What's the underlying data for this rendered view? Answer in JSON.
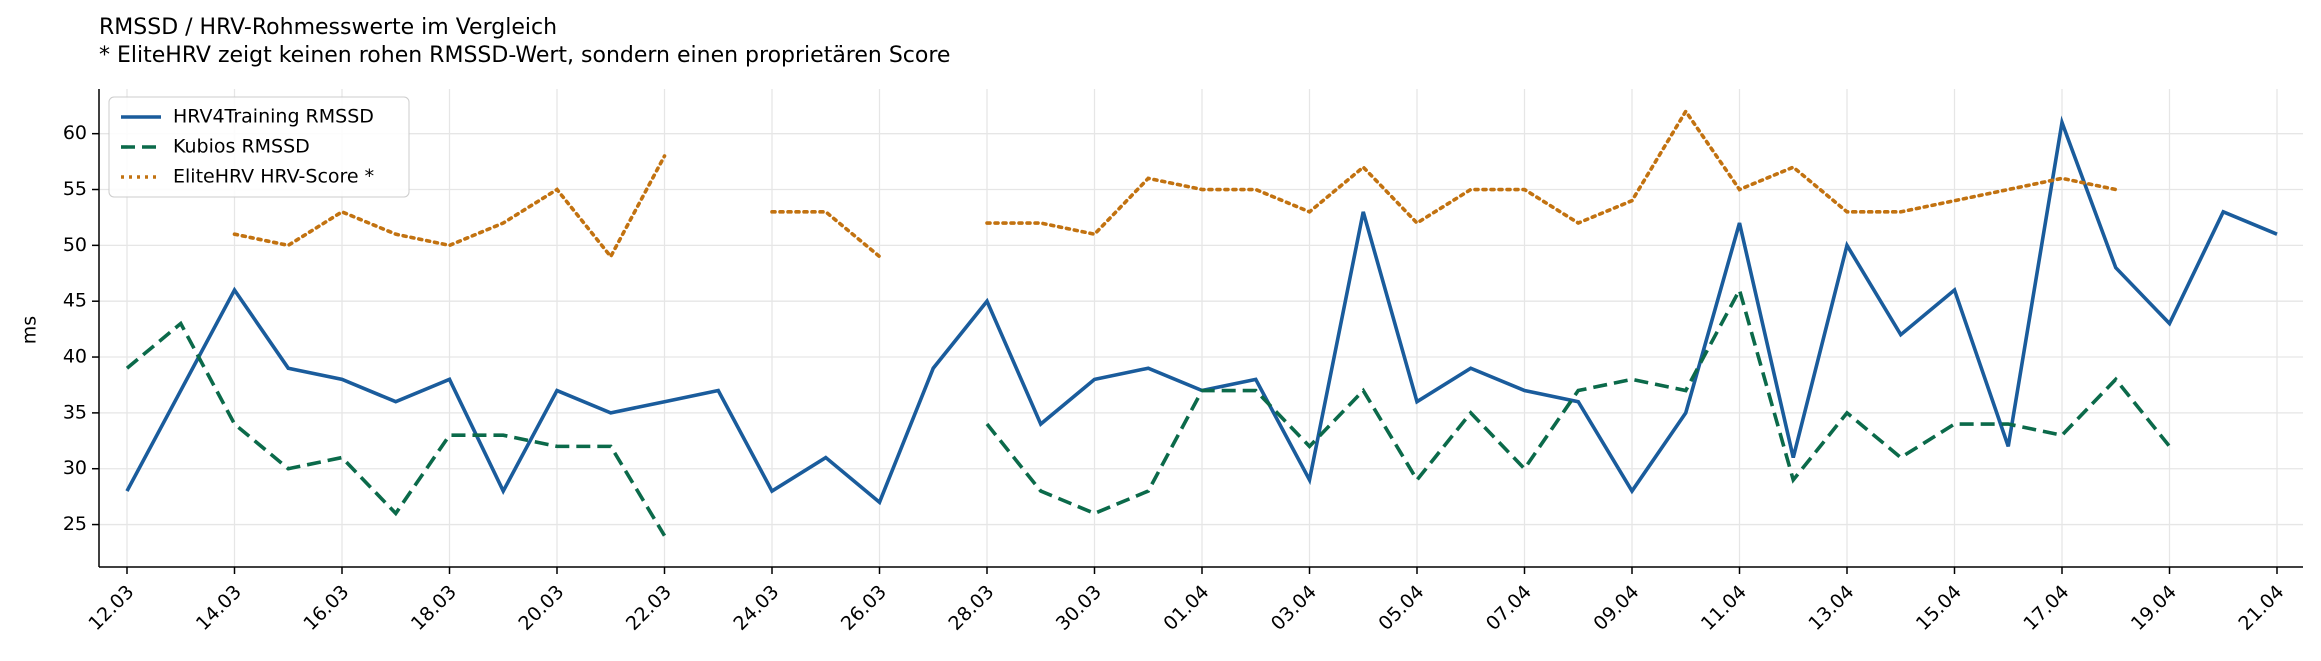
{
  "chart_data": {
    "type": "line",
    "title": "RMSSD / HRV-Rohmesswerte im Vergleich",
    "subtitle": "* EliteHRV zeigt keinen rohen RMSSD-Wert, sondern einen proprietären Score",
    "y_label": "ms",
    "categories": [
      "12.03",
      null,
      "14.03",
      null,
      "16.03",
      null,
      "18.03",
      null,
      "20.03",
      null,
      "22.03",
      null,
      "24.03",
      null,
      "26.03",
      null,
      "28.03",
      null,
      "30.03",
      null,
      "01.04",
      null,
      "03.04",
      null,
      "05.04",
      null,
      "07.04",
      null,
      "09.04",
      null,
      "11.04",
      null,
      "13.04",
      null,
      "15.04",
      null,
      "17.04",
      null,
      "19.04",
      null,
      "21.04"
    ],
    "series": [
      {
        "name": "HRV4Training RMSSD",
        "color": "#1a5c9c",
        "linestyle": "solid",
        "values": [
          28,
          37,
          46,
          39,
          38,
          36,
          38,
          28,
          37,
          35,
          36,
          37,
          28,
          31,
          27,
          39,
          45,
          34,
          38,
          39,
          37,
          38,
          29,
          53,
          36,
          39,
          37,
          36,
          28,
          35,
          52,
          31,
          50,
          42,
          46,
          32,
          61,
          48,
          43,
          53,
          51
        ]
      },
      {
        "name": "Kubios RMSSD",
        "color": "#0b6a4a",
        "linestyle": "dashed",
        "values": [
          39,
          43,
          34,
          30,
          31,
          26,
          33,
          33,
          32,
          32,
          24,
          null,
          null,
          null,
          null,
          null,
          34,
          28,
          26,
          28,
          37,
          37,
          32,
          37,
          29,
          35,
          30,
          37,
          38,
          37,
          46,
          29,
          35,
          31,
          34,
          34,
          33,
          38,
          32,
          null,
          null
        ]
      },
      {
        "name": "EliteHRV HRV-Score *",
        "color": "#c27210",
        "linestyle": "dotted",
        "values": [
          null,
          null,
          51,
          50,
          53,
          51,
          50,
          52,
          55,
          49,
          58,
          null,
          53,
          53,
          49,
          null,
          52,
          52,
          51,
          56,
          55,
          55,
          53,
          57,
          52,
          55,
          55,
          52,
          54,
          62,
          55,
          57,
          53,
          53,
          54,
          55,
          56,
          55,
          null,
          null,
          null
        ]
      }
    ],
    "ylim": [
      21.2,
      64
    ],
    "yticks": [
      25,
      30,
      35,
      40,
      45,
      50,
      55,
      60
    ],
    "grid": true,
    "legend": "upper left"
  }
}
